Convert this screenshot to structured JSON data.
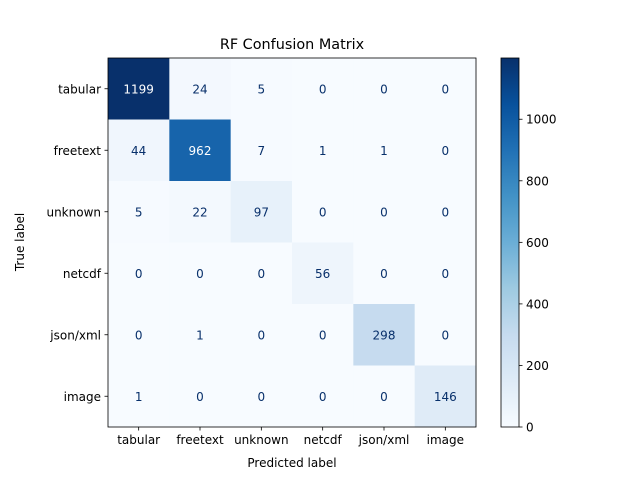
{
  "chart_data": {
    "type": "heatmap",
    "title": "RF Confusion Matrix",
    "xlabel": "Predicted label",
    "ylabel": "True label",
    "categories": [
      "tabular",
      "freetext",
      "unknown",
      "netcdf",
      "json/xml",
      "image"
    ],
    "matrix": [
      [
        1199,
        24,
        5,
        0,
        0,
        0
      ],
      [
        44,
        962,
        7,
        1,
        1,
        0
      ],
      [
        5,
        22,
        97,
        0,
        0,
        0
      ],
      [
        0,
        0,
        0,
        56,
        0,
        0
      ],
      [
        0,
        1,
        0,
        0,
        298,
        0
      ],
      [
        1,
        0,
        0,
        0,
        0,
        146
      ]
    ],
    "colormap": "Blues",
    "colormap_stops": [
      "#f7fbff",
      "#deebf7",
      "#c6dbef",
      "#9ecae1",
      "#6baed6",
      "#4292c6",
      "#2171b5",
      "#08519c",
      "#08306b"
    ],
    "value_range": [
      0,
      1199
    ],
    "colorbar_ticks": [
      0,
      200,
      400,
      600,
      800,
      1000
    ]
  }
}
